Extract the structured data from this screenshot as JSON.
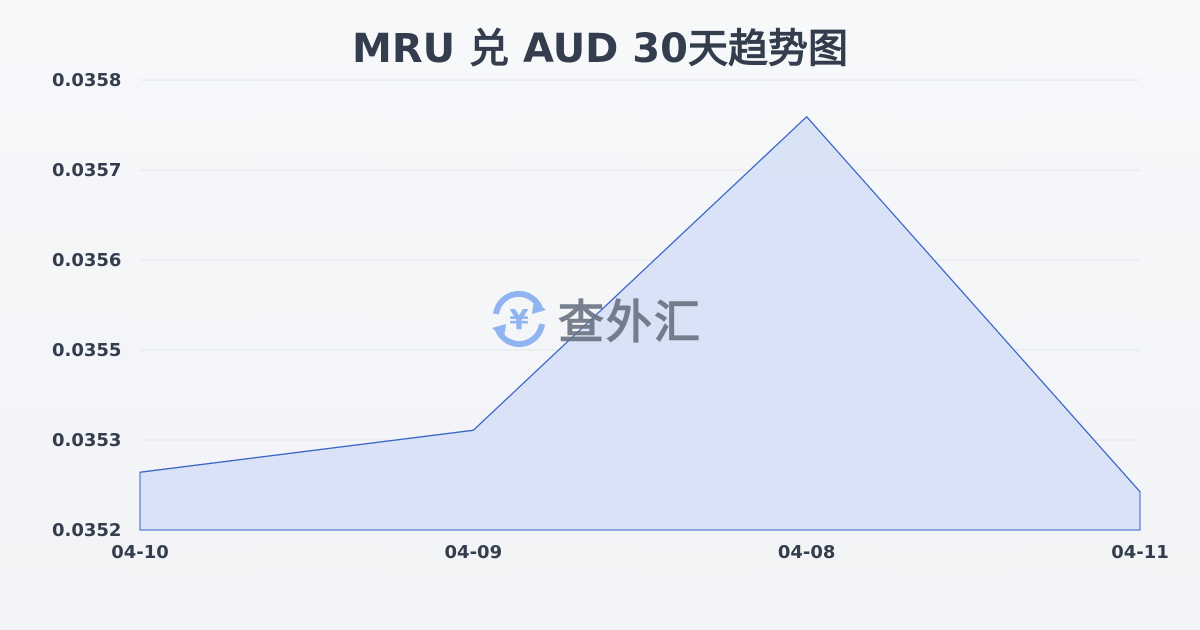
{
  "chart_data": {
    "type": "area",
    "title": "MRU 兑 AUD 30天趋势图",
    "categories": [
      "04-10",
      "04-09",
      "04-08",
      "04-11"
    ],
    "values": [
      0.035277,
      0.035333,
      0.035751,
      0.035251
    ],
    "ylim": [
      0.0352,
      0.0358
    ],
    "yticks": [
      0.0358,
      0.0357,
      0.0356,
      0.0355,
      0.0353,
      0.0352
    ],
    "grid": true,
    "line_color": "#3a64c8",
    "fill_color": "#d6e0f5"
  },
  "watermark": {
    "text": "查外汇",
    "icon": "yen-exchange-icon"
  }
}
